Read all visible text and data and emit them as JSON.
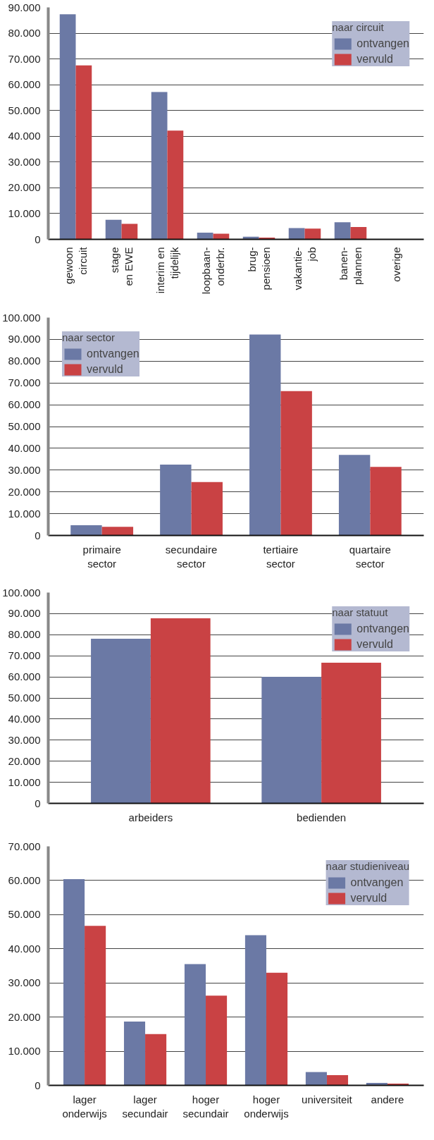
{
  "chart_data": [
    {
      "type": "bar",
      "legend_title": "naar circuit",
      "categories": [
        "gewoon\ncircuit",
        "stage\nen EWE",
        "interim en\ntijdelijk",
        "loopbaan-\nonderbr.",
        "brug-\npensioen",
        "vakantie-\njob",
        "banen-\nplannen",
        "overige"
      ],
      "series": [
        {
          "name": "ontvangen",
          "color": "#6b79a5",
          "values": [
            87300,
            7600,
            57200,
            2600,
            1000,
            4400,
            6600,
            0
          ]
        },
        {
          "name": "vervuld",
          "color": "#c94244",
          "values": [
            67500,
            6000,
            42200,
            2200,
            700,
            4200,
            4800,
            0
          ]
        }
      ],
      "ylim": [
        0,
        90000
      ],
      "yticks": [
        {
          "value": 0,
          "label": "0"
        },
        {
          "value": 10000,
          "label": "10.000"
        },
        {
          "value": 20000,
          "label": "20.000"
        },
        {
          "value": 30000,
          "label": "30.000"
        },
        {
          "value": 40000,
          "label": "40.000"
        },
        {
          "value": 50000,
          "label": "50.000"
        },
        {
          "value": 60000,
          "label": "60.000"
        },
        {
          "value": 70000,
          "label": "70.000"
        },
        {
          "value": 80000,
          "label": "80.000"
        },
        {
          "value": 90000,
          "label": "90.000"
        }
      ],
      "grid": "y",
      "legend": "top right"
    },
    {
      "type": "bar",
      "legend_title": "naar sector",
      "categories": [
        "primaire\nsector",
        "secundaire\nsector",
        "tertiaire\nsector",
        "quartaire\nsector"
      ],
      "series": [
        {
          "name": "ontvangen",
          "color": "#6b79a5",
          "values": [
            4700,
            32500,
            92200,
            37000
          ]
        },
        {
          "name": "vervuld",
          "color": "#c94244",
          "values": [
            4000,
            24500,
            66300,
            31500
          ]
        }
      ],
      "ylim": [
        0,
        100000
      ],
      "yticks": [
        {
          "value": 0,
          "label": "0"
        },
        {
          "value": 10000,
          "label": "10.000"
        },
        {
          "value": 20000,
          "label": "20.000"
        },
        {
          "value": 30000,
          "label": "30.000"
        },
        {
          "value": 40000,
          "label": "40.000"
        },
        {
          "value": 50000,
          "label": "50.000"
        },
        {
          "value": 60000,
          "label": "60.000"
        },
        {
          "value": 70000,
          "label": "70.000"
        },
        {
          "value": 80000,
          "label": "80.000"
        },
        {
          "value": 90000,
          "label": "90.000"
        },
        {
          "value": 100000,
          "label": "100.000"
        }
      ],
      "grid": "y",
      "legend": "top left"
    },
    {
      "type": "bar",
      "legend_title": "naar statuut",
      "categories": [
        "arbeiders",
        "bedienden"
      ],
      "series": [
        {
          "name": "ontvangen",
          "color": "#6b79a5",
          "values": [
            78100,
            60000
          ]
        },
        {
          "name": "vervuld",
          "color": "#c94244",
          "values": [
            87800,
            66700
          ]
        }
      ],
      "ylim": [
        0,
        100000
      ],
      "yticks": [
        {
          "value": 0,
          "label": "0"
        },
        {
          "value": 10000,
          "label": "10.000"
        },
        {
          "value": 20000,
          "label": "20.000"
        },
        {
          "value": 30000,
          "label": "30.000"
        },
        {
          "value": 40000,
          "label": "40.000"
        },
        {
          "value": 50000,
          "label": "50.000"
        },
        {
          "value": 60000,
          "label": "60.000"
        },
        {
          "value": 70000,
          "label": "70.000"
        },
        {
          "value": 80000,
          "label": "80.000"
        },
        {
          "value": 90000,
          "label": "90.000"
        },
        {
          "value": 100000,
          "label": "100.000"
        }
      ],
      "grid": "y",
      "legend": "top right"
    },
    {
      "type": "bar",
      "legend_title": "naar studieniveau",
      "categories": [
        "lager\nonderwijs",
        "lager\nsecundair",
        "hoger\nsecundair",
        "hoger\nonderwijs",
        "universiteit",
        "andere"
      ],
      "series": [
        {
          "name": "ontvangen",
          "color": "#6b79a5",
          "values": [
            60400,
            18700,
            35500,
            44000,
            3900,
            700
          ]
        },
        {
          "name": "vervuld",
          "color": "#c94244",
          "values": [
            46700,
            15000,
            26300,
            33000,
            3000,
            500
          ]
        }
      ],
      "ylim": [
        0,
        70000
      ],
      "yticks": [
        {
          "value": 0,
          "label": "0"
        },
        {
          "value": 10000,
          "label": "10.000"
        },
        {
          "value": 20000,
          "label": "20.000"
        },
        {
          "value": 30000,
          "label": "30.000"
        },
        {
          "value": 40000,
          "label": "40.000"
        },
        {
          "value": 50000,
          "label": "50.000"
        },
        {
          "value": 60000,
          "label": "60.000"
        },
        {
          "value": 70000,
          "label": "70.000"
        }
      ],
      "grid": "y",
      "legend": "top right"
    }
  ]
}
